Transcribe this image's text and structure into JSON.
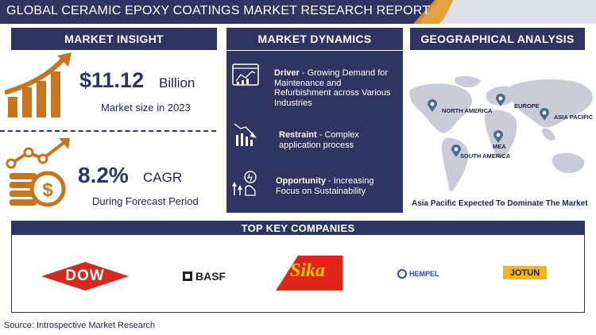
{
  "title": "GLOBAL CERAMIC EPOXY COATINGS MARKET RESEARCH REPORT",
  "sections": {
    "insight": "MARKET INSIGHT",
    "dynamics": "MARKET DYNAMICS",
    "geo": "GEOGRAPHICAL ANALYSIS",
    "companies": "TOP KEY COMPANIES"
  },
  "insight": {
    "market_value": "$11.12",
    "market_unit": "Billion",
    "market_caption": "Market size in 2023",
    "cagr_value": "8.2%",
    "cagr_label": "CAGR",
    "cagr_caption": "During Forecast Period"
  },
  "dynamics": {
    "driver_label": "Driver",
    "driver_text": " - Growing Demand for Maintenance and Refurbishment across Various Industries",
    "restraint_label": "Restraint",
    "restraint_text": " - Complex application process",
    "opportunity_label": "Opportunity",
    "opportunity_text": " - Increasing Focus on Sustainability"
  },
  "geo": {
    "regions": [
      "NORTH AMERICA",
      "EUROPE",
      "ASIA PACIFIC",
      "MEA",
      "SOUTH AMERICA"
    ],
    "conclusion": "Asia Pacific Expected To Dominate The Market"
  },
  "companies": {
    "dow": "DOW",
    "basf": "BASF",
    "sika": "Sika",
    "hempel": "HEMPEL",
    "jotun": "JOTUN"
  },
  "source": "Source: Introspective Market Research",
  "colors": {
    "navy": "#2e3560",
    "gold": "#e09a2a",
    "orange": "#c7741e",
    "red": "#d7281e",
    "grey_map": "#c9cbd6"
  }
}
